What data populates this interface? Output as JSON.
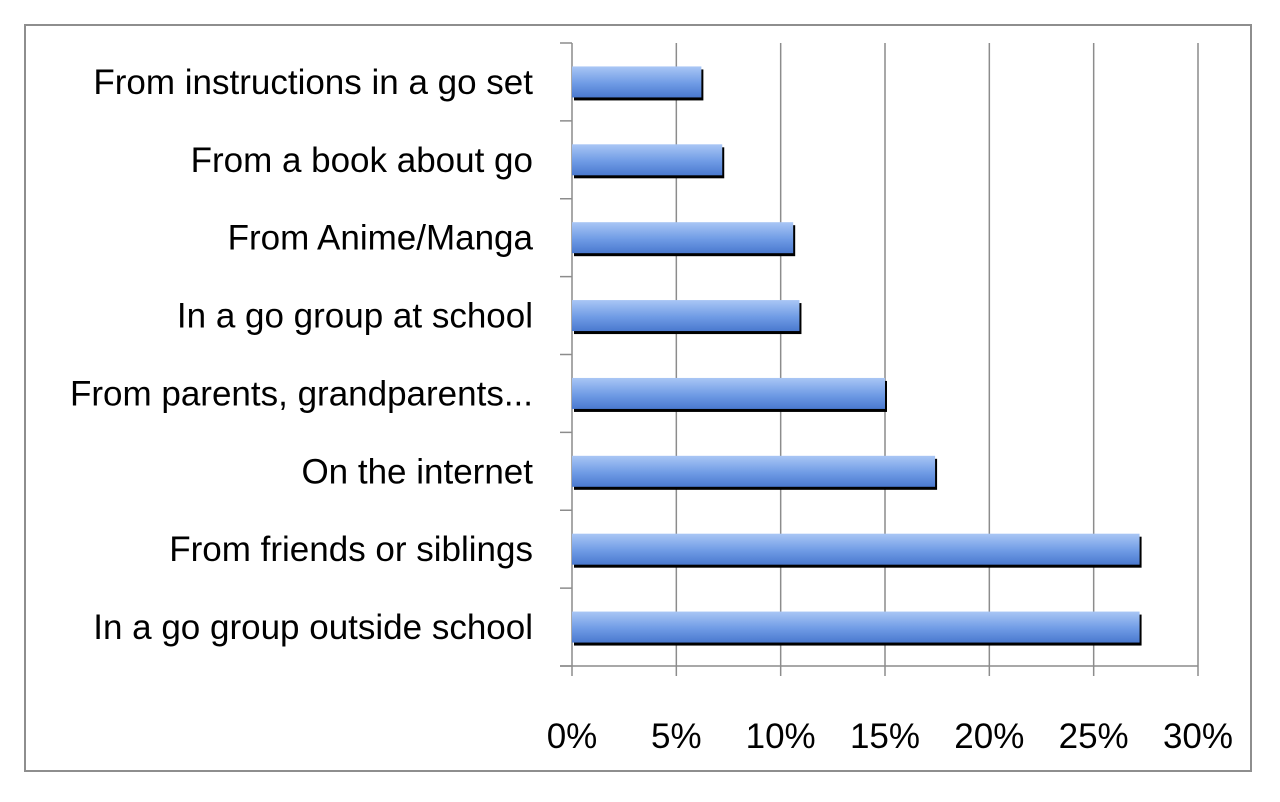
{
  "chart_data": {
    "type": "bar",
    "orientation": "horizontal",
    "categories": [
      "From instructions in a go set",
      "From a book about go",
      "From Anime/Manga",
      "In a go group at school",
      "From parents, grandparents...",
      "On the internet",
      "From friends or siblings",
      "In a go group outside school"
    ],
    "values": [
      6.2,
      7.2,
      10.6,
      10.9,
      15.0,
      17.4,
      27.2,
      27.2
    ],
    "xlim": [
      0,
      30
    ],
    "ticks": [
      0,
      5,
      10,
      15,
      20,
      25,
      30
    ],
    "tick_suffix": "%",
    "grid": true,
    "legend": "none",
    "colors": {
      "bar_light": "#a9c6f5",
      "bar_mid": "#6f9be5",
      "bar_dark": "#4a79cf",
      "bar_shadow": "#000000",
      "grid": "#8c8c8c"
    }
  }
}
